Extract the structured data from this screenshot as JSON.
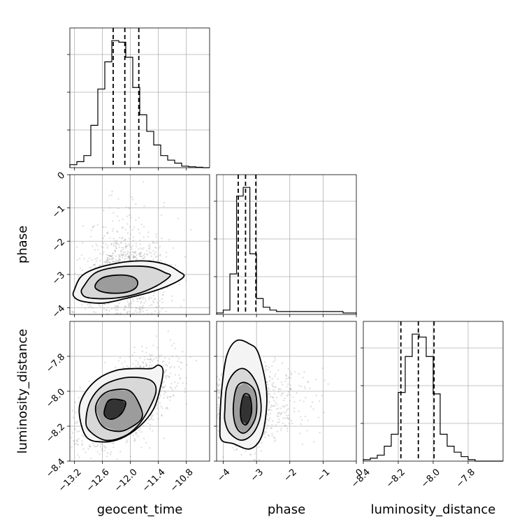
{
  "chart_data": {
    "type": "corner",
    "parameters": [
      "geocent_time",
      "phase",
      "luminosity_distance"
    ],
    "ranges": {
      "geocent_time": [
        -13.3,
        -10.3
      ],
      "phase": [
        -4.2,
        0.0
      ],
      "luminosity_distance": [
        -8.4,
        -7.6
      ]
    },
    "ticks": {
      "geocent_time": [
        "−13.2",
        "−12.6",
        "−12.0",
        "−11.4",
        "−10.8"
      ],
      "phase": [
        "−4",
        "−3",
        "−2",
        "−1",
        "0"
      ],
      "luminosity_distance": [
        "−8.4",
        "−8.2",
        "−8.0",
        "−7.8"
      ]
    },
    "tick_values": {
      "geocent_time": [
        -13.2,
        -12.6,
        -12.0,
        -11.4,
        -10.8
      ],
      "phase": [
        -4,
        -3,
        -2,
        -1,
        0
      ],
      "luminosity_distance": [
        -8.4,
        -8.2,
        -8.0,
        -7.8
      ]
    },
    "histograms": {
      "geocent_time": {
        "bin_edges": [
          -13.3,
          -13.15,
          -13.0,
          -12.85,
          -12.7,
          -12.55,
          -12.4,
          -12.25,
          -12.1,
          -11.95,
          -11.8,
          -11.65,
          -11.5,
          -11.35,
          -11.2,
          -11.05,
          -10.9,
          -10.75,
          -10.6,
          -10.45,
          -10.3
        ],
        "counts": [
          2,
          4,
          8,
          28,
          52,
          70,
          84,
          83,
          73,
          53,
          35,
          24,
          15,
          8,
          5,
          3,
          1,
          0.6,
          0.3,
          0
        ]
      },
      "phase": {
        "bin_edges": [
          -4.2,
          -4.0,
          -3.8,
          -3.6,
          -3.4,
          -3.2,
          -3.0,
          -2.8,
          -2.6,
          -2.4,
          -2.2,
          -2.0,
          -1.8,
          -1.6,
          -1.4,
          -1.2,
          -1.0,
          -0.8,
          -0.6,
          -0.4,
          -0.2,
          0.0
        ],
        "counts": [
          1,
          3,
          28,
          82,
          88,
          42,
          11,
          5,
          3,
          2,
          2,
          2,
          2,
          2,
          2,
          2,
          2,
          2,
          2,
          1,
          1
        ]
      },
      "luminosity_distance": {
        "bin_edges": [
          -8.4,
          -8.36,
          -8.32,
          -8.28,
          -8.24,
          -8.2,
          -8.16,
          -8.12,
          -8.08,
          -8.04,
          -8.0,
          -7.96,
          -7.92,
          -7.88,
          -7.84,
          -7.8,
          -7.76,
          -7.72,
          -7.68,
          -7.64,
          -7.6
        ],
        "counts": [
          1,
          2,
          4,
          10,
          18,
          46,
          70,
          85,
          83,
          70,
          45,
          18,
          10,
          6,
          3,
          1,
          0,
          0,
          0,
          0
        ]
      }
    },
    "quantiles": {
      "geocent_time": [
        -12.37,
        -12.12,
        -11.82
      ],
      "phase": [
        -3.55,
        -3.33,
        -3.02
      ],
      "luminosity_distance": [
        -8.185,
        -8.085,
        -7.995
      ]
    },
    "contours": {
      "geocent_time_vs_phase": [
        [
          [
            -12.75,
            -3.3
          ],
          [
            -12.6,
            -3.1
          ],
          [
            -12.3,
            -3.02
          ],
          [
            -12.0,
            -3.05
          ],
          [
            -11.85,
            -3.2
          ],
          [
            -11.9,
            -3.42
          ],
          [
            -12.15,
            -3.55
          ],
          [
            -12.5,
            -3.55
          ],
          [
            -12.72,
            -3.45
          ]
        ],
        [
          [
            -13.0,
            -3.35
          ],
          [
            -12.75,
            -2.95
          ],
          [
            -12.3,
            -2.78
          ],
          [
            -11.8,
            -2.75
          ],
          [
            -11.5,
            -2.8
          ],
          [
            -11.25,
            -2.95
          ],
          [
            -11.15,
            -3.05
          ],
          [
            -11.45,
            -3.35
          ],
          [
            -11.9,
            -3.6
          ],
          [
            -12.4,
            -3.72
          ],
          [
            -12.9,
            -3.7
          ],
          [
            -13.05,
            -3.55
          ]
        ],
        [
          [
            -13.2,
            -3.45
          ],
          [
            -13.05,
            -3.05
          ],
          [
            -12.7,
            -2.8
          ],
          [
            -12.1,
            -2.62
          ],
          [
            -11.6,
            -2.6
          ],
          [
            -11.2,
            -2.72
          ],
          [
            -10.95,
            -2.92
          ],
          [
            -10.85,
            -3.05
          ],
          [
            -11.05,
            -3.25
          ],
          [
            -11.5,
            -3.5
          ],
          [
            -12.1,
            -3.72
          ],
          [
            -12.6,
            -3.86
          ],
          [
            -13.05,
            -3.8
          ],
          [
            -13.22,
            -3.65
          ]
        ]
      ],
      "geocent_time_vs_luminosity_distance": [
        [
          [
            -12.55,
            -8.1
          ],
          [
            -12.45,
            -8.05
          ],
          [
            -12.2,
            -8.05
          ],
          [
            -12.1,
            -8.07
          ],
          [
            -12.2,
            -8.13
          ],
          [
            -12.4,
            -8.16
          ],
          [
            -12.55,
            -8.14
          ]
        ],
        [
          [
            -12.75,
            -8.1
          ],
          [
            -12.6,
            -8.02
          ],
          [
            -12.3,
            -7.99
          ],
          [
            -12.0,
            -8.0
          ],
          [
            -11.8,
            -8.08
          ],
          [
            -11.75,
            -8.15
          ],
          [
            -11.95,
            -8.2
          ],
          [
            -12.25,
            -8.23
          ],
          [
            -12.6,
            -8.2
          ]
        ],
        [
          [
            -12.95,
            -8.15
          ],
          [
            -12.85,
            -8.05
          ],
          [
            -12.6,
            -7.97
          ],
          [
            -12.25,
            -7.93
          ],
          [
            -11.9,
            -7.92
          ],
          [
            -11.55,
            -7.94
          ],
          [
            -11.45,
            -8.0
          ],
          [
            -11.6,
            -8.1
          ],
          [
            -11.85,
            -8.2
          ],
          [
            -12.15,
            -8.26
          ],
          [
            -12.55,
            -8.28
          ],
          [
            -12.9,
            -8.22
          ]
        ],
        [
          [
            -13.1,
            -8.12
          ],
          [
            -13.0,
            -8.02
          ],
          [
            -12.7,
            -7.93
          ],
          [
            -12.3,
            -7.88
          ],
          [
            -11.9,
            -7.87
          ],
          [
            -11.55,
            -7.87
          ],
          [
            -11.4,
            -7.85
          ],
          [
            -11.3,
            -7.88
          ],
          [
            -11.35,
            -7.97
          ],
          [
            -11.5,
            -8.1
          ],
          [
            -11.8,
            -8.2
          ],
          [
            -12.2,
            -8.27
          ],
          [
            -12.6,
            -8.29
          ],
          [
            -12.95,
            -8.26
          ]
        ]
      ],
      "phase_vs_luminosity_distance": [
        [
          [
            -3.48,
            -8.1
          ],
          [
            -3.38,
            -8.02
          ],
          [
            -3.2,
            -8.03
          ],
          [
            -3.15,
            -8.12
          ],
          [
            -3.3,
            -8.19
          ],
          [
            -3.45,
            -8.17
          ]
        ],
        [
          [
            -3.7,
            -8.1
          ],
          [
            -3.6,
            -7.98
          ],
          [
            -3.35,
            -7.95
          ],
          [
            -3.05,
            -8.0
          ],
          [
            -3.0,
            -8.12
          ],
          [
            -3.15,
            -8.2
          ],
          [
            -3.4,
            -8.24
          ],
          [
            -3.62,
            -8.2
          ]
        ],
        [
          [
            -3.95,
            -8.1
          ],
          [
            -3.9,
            -7.98
          ],
          [
            -3.7,
            -7.9
          ],
          [
            -3.4,
            -7.87
          ],
          [
            -3.1,
            -7.92
          ],
          [
            -2.9,
            -8.02
          ],
          [
            -2.88,
            -8.14
          ],
          [
            -3.1,
            -8.24
          ],
          [
            -3.45,
            -8.28
          ],
          [
            -3.8,
            -8.24
          ],
          [
            -3.95,
            -8.17
          ]
        ],
        [
          [
            -4.1,
            -8.2
          ],
          [
            -4.05,
            -8.0
          ],
          [
            -3.9,
            -7.8
          ],
          [
            -3.6,
            -7.71
          ],
          [
            -3.2,
            -7.73
          ],
          [
            -2.95,
            -7.78
          ],
          [
            -2.72,
            -7.96
          ],
          [
            -2.7,
            -8.1
          ],
          [
            -2.85,
            -8.26
          ],
          [
            -3.2,
            -8.33
          ],
          [
            -3.7,
            -8.3
          ],
          [
            -4.05,
            -8.28
          ]
        ]
      ]
    },
    "scatter_centers": {
      "geocent_time_vs_phase": {
        "mean": [
          -12.1,
          -3.1
        ],
        "sd": [
          0.45,
          0.9
        ]
      },
      "geocent_time_vs_luminosity_distance": {
        "mean": [
          -12.1,
          -8.06
        ],
        "sd": [
          0.5,
          0.12
        ],
        "corr": 0.6
      },
      "phase_vs_luminosity_distance": {
        "mean": [
          -3.2,
          -8.07
        ],
        "sd": [
          0.8,
          0.11
        ]
      }
    },
    "grid": true
  }
}
